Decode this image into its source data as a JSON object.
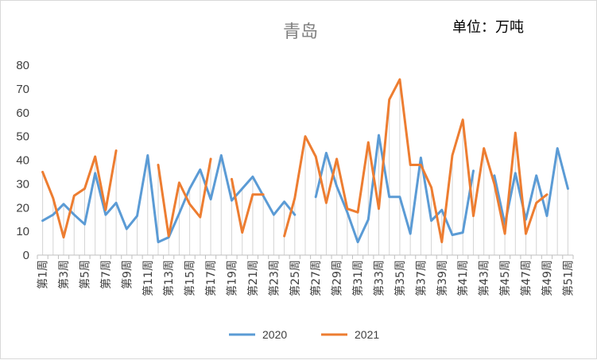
{
  "chart_data": {
    "type": "line",
    "title": "青岛",
    "unit_label": "单位：万吨",
    "ylim": [
      0,
      80
    ],
    "yticks": [
      0,
      10,
      20,
      30,
      40,
      50,
      60,
      70,
      80
    ],
    "categories": [
      "第1周",
      "第2周",
      "第3周",
      "第4周",
      "第5周",
      "第6周",
      "第7周",
      "第8周",
      "第9周",
      "第10周",
      "第11周",
      "第12周",
      "第13周",
      "第14周",
      "第15周",
      "第16周",
      "第17周",
      "第18周",
      "第19周",
      "第20周",
      "第21周",
      "第22周",
      "第23周",
      "第24周",
      "第25周",
      "第26周",
      "第27周",
      "第28周",
      "第29周",
      "第30周",
      "第31周",
      "第32周",
      "第33周",
      "第34周",
      "第35周",
      "第36周",
      "第37周",
      "第38周",
      "第39周",
      "第40周",
      "第41周",
      "第42周",
      "第43周",
      "第44周",
      "第45周",
      "第46周",
      "第47周",
      "第48周",
      "第49周",
      "第50周",
      "第51周"
    ],
    "xtick_labels": [
      "第1周",
      "第3周",
      "第5周",
      "第7周",
      "第9周",
      "第11周",
      "第13周",
      "第15周",
      "第17周",
      "第19周",
      "第21周",
      "第23周",
      "第25周",
      "第27周",
      "第29周",
      "第31周",
      "第33周",
      "第35周",
      "第37周",
      "第39周",
      "第41周",
      "第43周",
      "第45周",
      "第47周",
      "第49周",
      "第51周"
    ],
    "series": [
      {
        "name": "2020",
        "color": "#5b9bd5",
        "values": [
          14.5,
          17,
          21.5,
          17,
          13,
          34.5,
          17,
          22,
          11,
          16.5,
          42,
          5.5,
          7.5,
          17.5,
          28,
          36,
          23.5,
          42,
          23,
          28,
          33,
          25,
          17,
          22.5,
          17,
          null,
          24.5,
          43,
          29,
          18,
          5.5,
          15,
          50.5,
          24.5,
          24.5,
          9,
          41,
          14.5,
          19,
          8.5,
          9.5,
          35.5,
          null,
          33.5,
          13,
          34.5,
          15,
          33.5,
          16.5,
          45,
          28
        ]
      },
      {
        "name": "2021",
        "color": "#ed7d31",
        "values": [
          35,
          24,
          7.5,
          25,
          28,
          41.5,
          19,
          44,
          null,
          null,
          null,
          38,
          8,
          30.5,
          21.5,
          16,
          40.5,
          null,
          32,
          9.5,
          25.5,
          25.5,
          null,
          8,
          24,
          50,
          41.5,
          22,
          40.5,
          19.5,
          18,
          47.5,
          19.5,
          65.5,
          74,
          38,
          38,
          28.5,
          5.5,
          42,
          57,
          16.5,
          45,
          30,
          9,
          51.5,
          9,
          22,
          25.5,
          null,
          null
        ]
      }
    ]
  }
}
